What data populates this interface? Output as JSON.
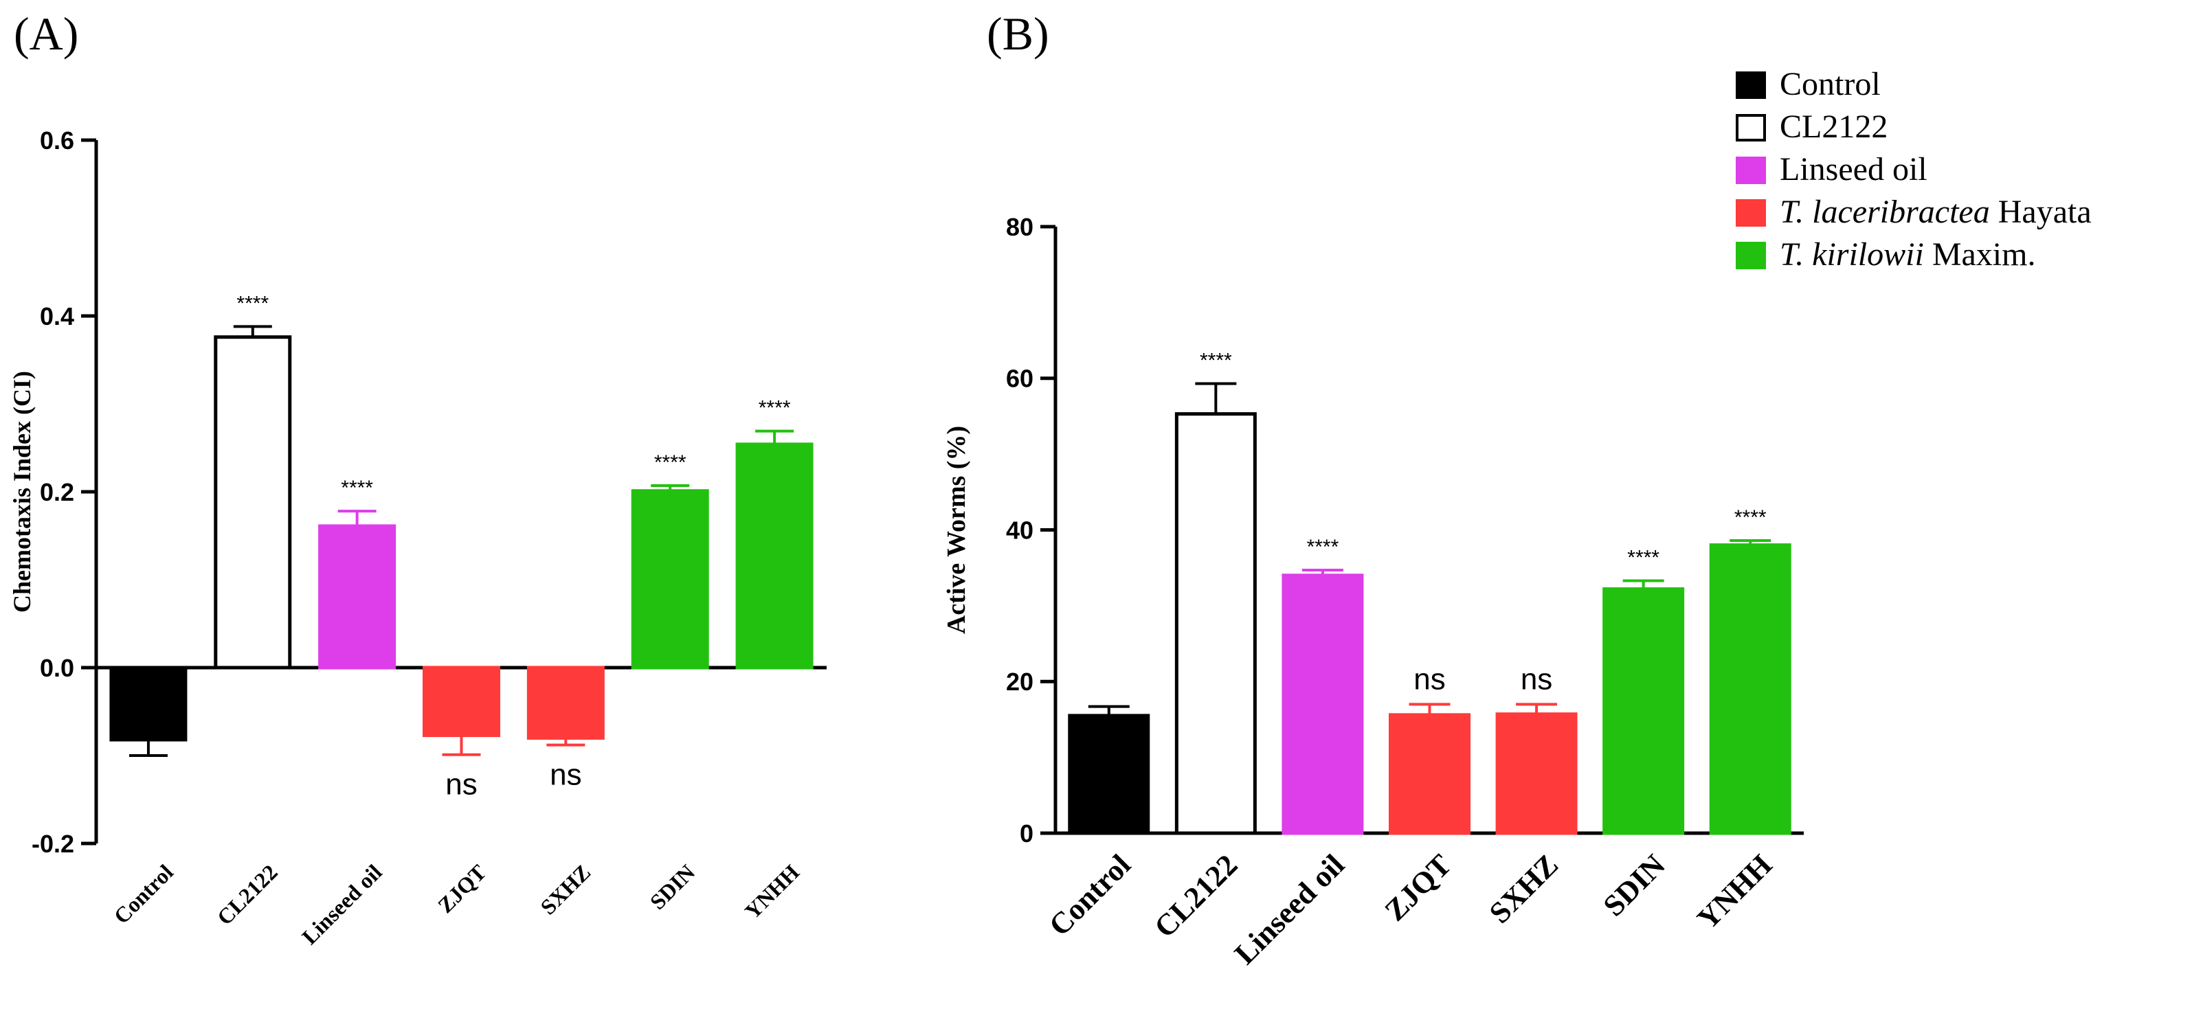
{
  "colors": {
    "Control": "#000000",
    "CL2122": "#ffffff",
    "Linseed oil": "#dd3ee9",
    "red": "#ff3a3a",
    "green": "#22c10f"
  },
  "legend": [
    {
      "label": "Control",
      "italic": "",
      "rest": "Control",
      "color": "#000000"
    },
    {
      "label": "CL2122",
      "italic": "",
      "rest": "CL2122",
      "color": "#ffffff"
    },
    {
      "label": "Linseed oil",
      "italic": "",
      "rest": "Linseed oil",
      "color": "#dd3ee9"
    },
    {
      "label": "T. laceribractea Hayata",
      "italic": "T. laceribractea",
      "rest": " Hayata",
      "color": "#ff3a3a"
    },
    {
      "label": "T. kirilowii Maxim.",
      "italic": "T. kirilowii",
      "rest": " Maxim.",
      "color": "#22c10f"
    }
  ],
  "chart_data": [
    {
      "panel": "(A)",
      "type": "bar",
      "ylabel": "Chemotaxis Index (CI)",
      "ylim": [
        -0.2,
        0.6
      ],
      "yticks": [
        -0.2,
        0.0,
        0.2,
        0.4,
        0.6
      ],
      "ytick_labels": [
        "-0.2",
        "0.0",
        "0.2",
        "0.4",
        "0.6"
      ],
      "categories": [
        "Control",
        "CL2122",
        "Linseed oil",
        "ZJQT",
        "SXHZ",
        "SDIN",
        "YNHH"
      ],
      "values": [
        -0.082,
        0.376,
        0.161,
        -0.077,
        -0.08,
        0.201,
        0.254
      ],
      "errors": [
        0.018,
        0.012,
        0.017,
        0.022,
        0.008,
        0.006,
        0.015
      ],
      "fills": [
        "#000000",
        "#ffffff",
        "#dd3ee9",
        "#ff3a3a",
        "#ff3a3a",
        "#22c10f",
        "#22c10f"
      ],
      "significance": [
        "",
        "****",
        "****",
        "ns",
        "ns",
        "****",
        "****"
      ]
    },
    {
      "panel": "(B)",
      "type": "bar",
      "ylabel": "Active Worms (%)",
      "ylim": [
        0,
        80
      ],
      "yticks": [
        0,
        20,
        40,
        60,
        80
      ],
      "ytick_labels": [
        "0",
        "20",
        "40",
        "60",
        "80"
      ],
      "categories": [
        "Control",
        "CL2122",
        "Linseed oil",
        "ZJQT",
        "SXHZ",
        "SDIN",
        "YNHH"
      ],
      "values": [
        15.5,
        55.3,
        34.0,
        15.6,
        15.7,
        32.2,
        38.0
      ],
      "errors": [
        1.2,
        4.0,
        0.7,
        1.4,
        1.3,
        1.1,
        0.6
      ],
      "fills": [
        "#000000",
        "#ffffff",
        "#dd3ee9",
        "#ff3a3a",
        "#ff3a3a",
        "#22c10f",
        "#22c10f"
      ],
      "significance": [
        "",
        "****",
        "****",
        "ns",
        "ns",
        "****",
        "****"
      ]
    }
  ]
}
